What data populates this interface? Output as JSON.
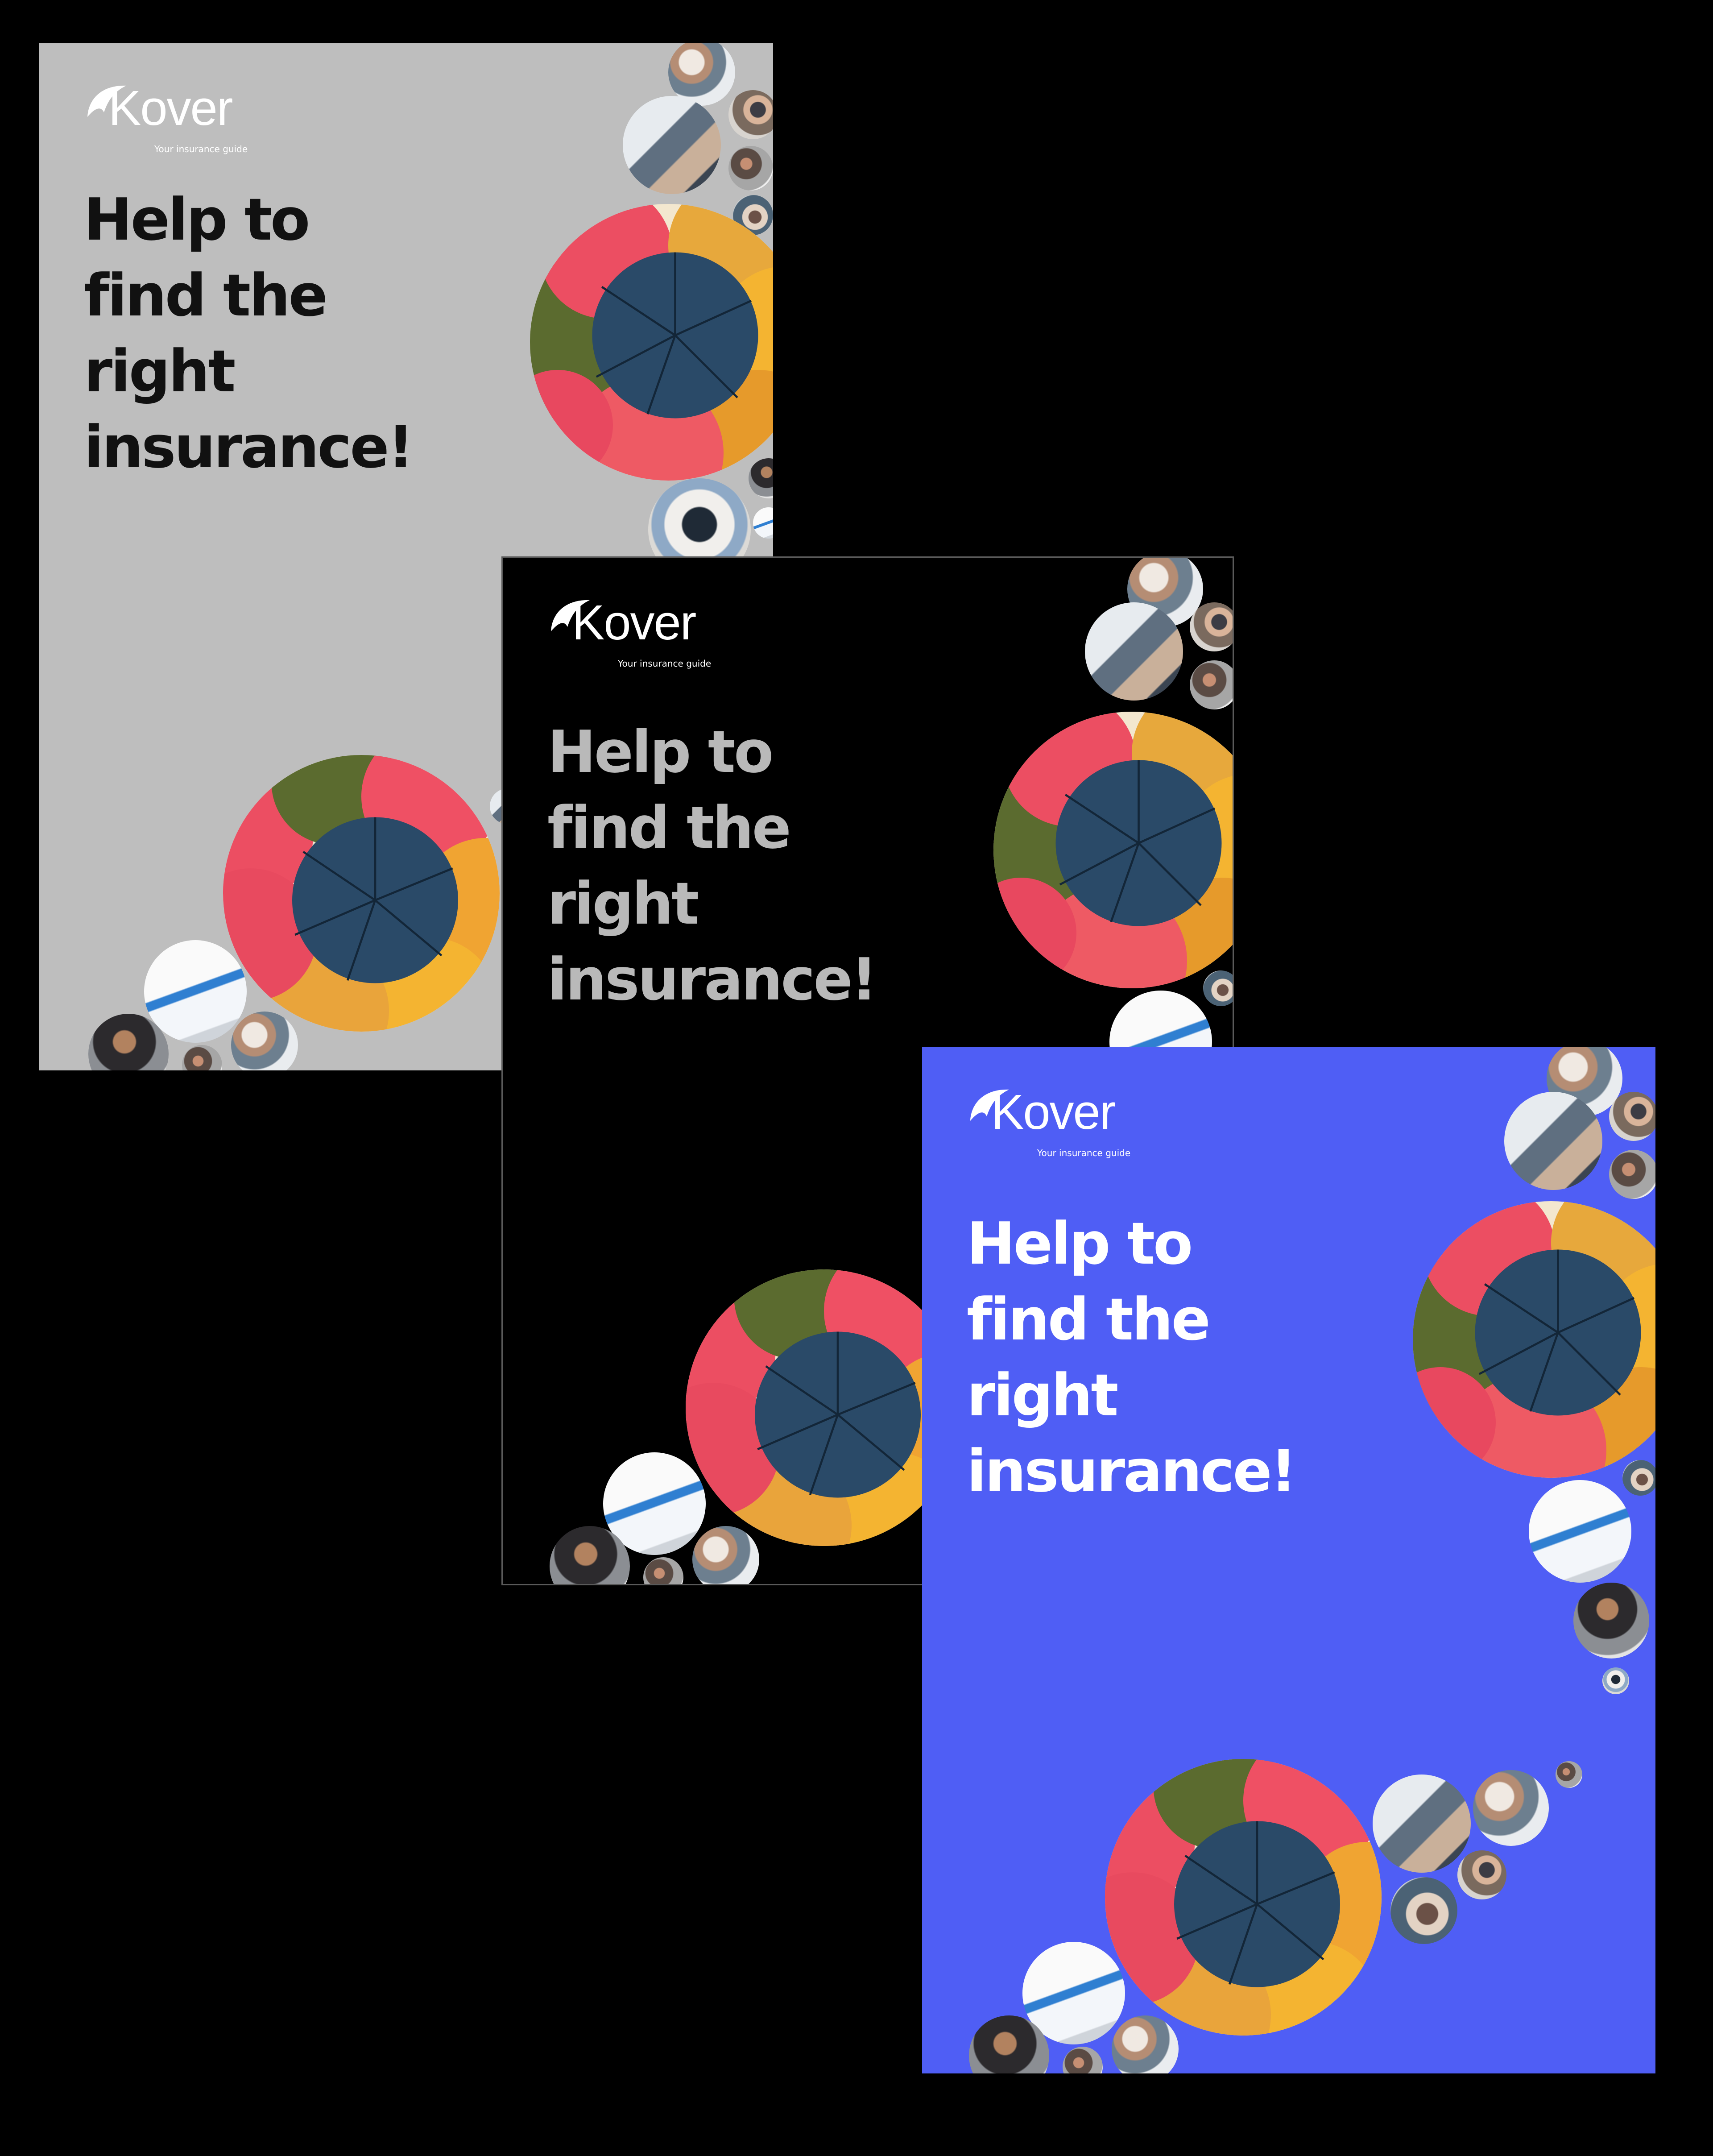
{
  "brand": {
    "name": "Kover",
    "tagline": "Your insurance guide"
  },
  "headline": [
    "Help to",
    "find the",
    "right",
    "insurance!"
  ],
  "posters": [
    {
      "id": "gray",
      "background": "#bebebe",
      "headline_color": "#111111"
    },
    {
      "id": "black",
      "background": "#000000",
      "headline_color": "#b9b9b9"
    },
    {
      "id": "blue",
      "background": "#4f5ef5",
      "headline_color": "#ffffff"
    }
  ],
  "icons": [
    "umbrella-logo-icon",
    "umbrella-collage-image",
    "photo-bubble-image"
  ]
}
